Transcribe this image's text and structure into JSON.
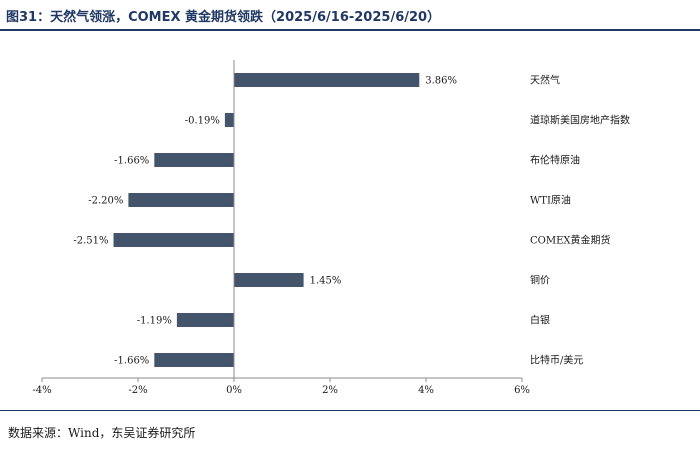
{
  "header": {
    "title": "图31：天然气领涨，COMEX 黄金期货领跌（2025/6/16-2025/6/20）"
  },
  "footer": {
    "source": "数据来源：Wind，东吴证券研究所"
  },
  "colors": {
    "bar": "#44546a",
    "accent": "#1f3864",
    "axis": "#8c8c8c"
  },
  "chart_data": {
    "type": "bar",
    "orientation": "horizontal",
    "title": "",
    "xlabel": "",
    "ylabel": "",
    "categories": [
      "天然气",
      "道琼斯美国房地产指数",
      "布伦特原油",
      "WTI原油",
      "COMEX黄金期货",
      "铜价",
      "白银",
      "比特币/美元"
    ],
    "values": [
      3.86,
      -0.19,
      -1.66,
      -2.2,
      -2.51,
      1.45,
      -1.19,
      -1.66
    ],
    "value_labels": [
      "3.86%",
      "-0.19%",
      "-1.66%",
      "-2.20%",
      "-2.51%",
      "1.45%",
      "-1.19%",
      "-1.66%"
    ],
    "xlim": [
      -4,
      6
    ],
    "xticks": [
      -4,
      -2,
      0,
      2,
      4,
      6
    ],
    "xtick_labels": [
      "-4%",
      "-2%",
      "0%",
      "2%",
      "4%",
      "6%"
    ],
    "unit": "%",
    "grid": false,
    "legend": "none"
  }
}
